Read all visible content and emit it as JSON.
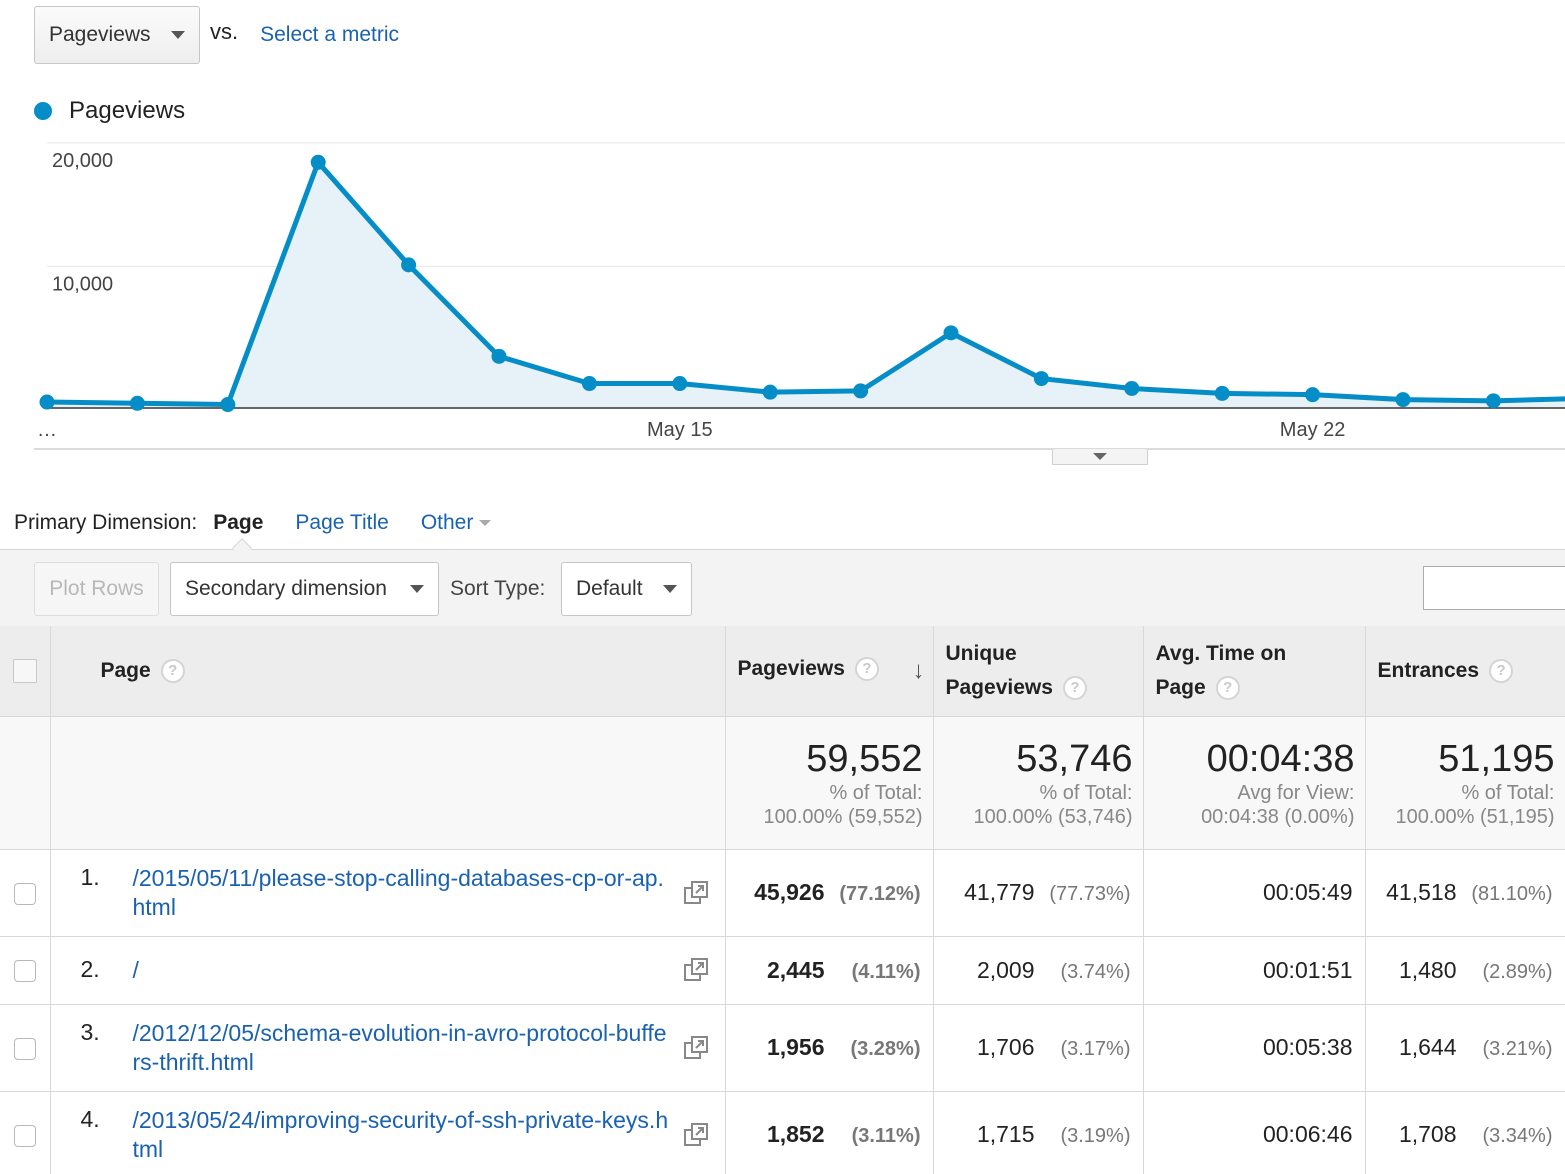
{
  "metric_selector": {
    "metric_label": "Pageviews",
    "vs_label": "vs.",
    "select_metric_label": "Select a metric"
  },
  "legend": {
    "label": "Pageviews",
    "color": "#058dc7"
  },
  "chart_data": {
    "type": "area",
    "series": [
      {
        "name": "Pageviews",
        "color": "#058dc7",
        "values": [
          400,
          300,
          200,
          19800,
          11500,
          4100,
          1900,
          1900,
          1200,
          1300,
          6000,
          2300,
          1500,
          1100,
          1000,
          600,
          500,
          700
        ]
      }
    ],
    "y_ticks": [
      "20,000",
      "10,000"
    ],
    "y_tick_values": [
      20000,
      10000
    ],
    "x_tick_labels": [
      {
        "index": 0,
        "label": "…"
      },
      {
        "index": 7,
        "label": "May 15"
      },
      {
        "index": 14,
        "label": "May 22"
      }
    ],
    "ylim": [
      0,
      21200
    ],
    "grid": true
  },
  "primary_dimension": {
    "label": "Primary Dimension:",
    "active": "Page",
    "options": [
      "Page Title",
      "Other"
    ]
  },
  "toolbar": {
    "plot_rows_label": "Plot Rows",
    "secondary_dimension_label": "Secondary dimension",
    "sort_type_label": "Sort Type:",
    "sort_type_value": "Default",
    "search_placeholder": ""
  },
  "table": {
    "headers": {
      "page": "Page",
      "pageviews": "Pageviews",
      "unique_line1": "Unique",
      "unique_line2": "Pageviews",
      "avgtime_line1": "Avg. Time on",
      "avgtime_line2": "Page",
      "entrances": "Entrances"
    },
    "totals": {
      "pageviews": {
        "value": "59,552",
        "label": "% of Total:",
        "detail": "100.00% (59,552)"
      },
      "unique": {
        "value": "53,746",
        "label": "% of Total:",
        "detail": "100.00% (53,746)"
      },
      "avgtime": {
        "value": "00:04:38",
        "label": "Avg for View:",
        "detail": "00:04:38 (0.00%)"
      },
      "entrances": {
        "value": "51,195",
        "label": "% of Total:",
        "detail": "100.00% (51,195)"
      }
    },
    "rows": [
      {
        "num": "1.",
        "page": "/2015/05/11/please-stop-calling-databases-cp-or-ap.html",
        "pageviews": "45,926",
        "pageviews_pct": "(77.12%)",
        "unique": "41,779",
        "unique_pct": "(77.73%)",
        "avgtime": "00:05:49",
        "entrances": "41,518",
        "entrances_pct": "(81.10%)"
      },
      {
        "num": "2.",
        "page": "/",
        "pageviews": "2,445",
        "pageviews_pct": "(4.11%)",
        "unique": "2,009",
        "unique_pct": "(3.74%)",
        "avgtime": "00:01:51",
        "entrances": "1,480",
        "entrances_pct": "(2.89%)"
      },
      {
        "num": "3.",
        "page": "/2012/12/05/schema-evolution-in-avro-protocol-buffers-thrift.html",
        "pageviews": "1,956",
        "pageviews_pct": "(3.28%)",
        "unique": "1,706",
        "unique_pct": "(3.17%)",
        "avgtime": "00:05:38",
        "entrances": "1,644",
        "entrances_pct": "(3.21%)"
      },
      {
        "num": "4.",
        "page": "/2013/05/24/improving-security-of-ssh-private-keys.html",
        "pageviews": "1,852",
        "pageviews_pct": "(3.11%)",
        "unique": "1,715",
        "unique_pct": "(3.19%)",
        "avgtime": "00:06:46",
        "entrances": "1,708",
        "entrances_pct": "(3.34%)"
      }
    ]
  }
}
